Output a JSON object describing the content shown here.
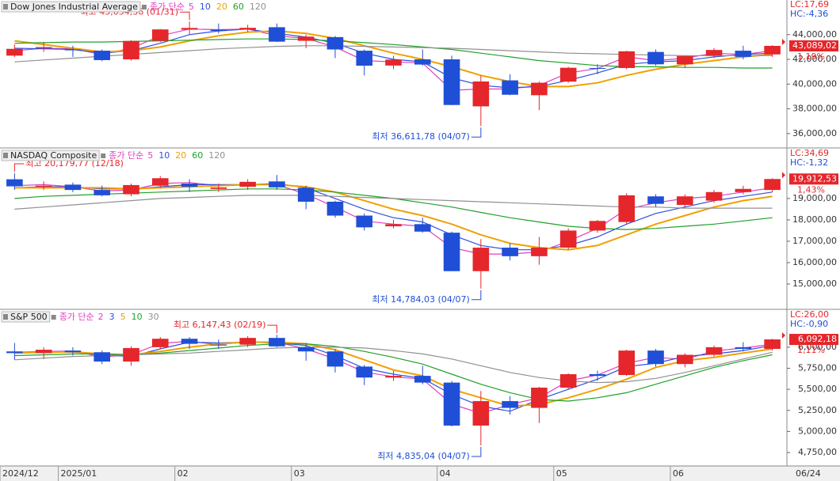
{
  "chart_data": [
    {
      "type": "candlestick",
      "title": "Dow Jones Industrial Average",
      "legend_prefix": "종가 단순",
      "open": [
        42300,
        42900,
        42800,
        42700,
        42000,
        43500,
        44400,
        44400,
        44400,
        44600,
        43500,
        43800,
        42700,
        41500,
        42000,
        42000,
        38200,
        40300,
        39100,
        40200,
        41300,
        41300,
        42600,
        41600,
        42300,
        42700,
        42400
      ],
      "high": [
        43200,
        43400,
        43100,
        42800,
        43550,
        44450,
        45054.36,
        44900,
        44800,
        44900,
        44000,
        43900,
        42800,
        42300,
        42800,
        42300,
        40700,
        40800,
        40200,
        41400,
        41600,
        42700,
        42800,
        42300,
        42900,
        43100,
        43150
      ],
      "low": [
        42200,
        42600,
        42200,
        41850,
        41900,
        43400,
        44000,
        44100,
        44200,
        43400,
        42900,
        42100,
        40700,
        41200,
        41500,
        38300,
        36611.78,
        39100,
        37900,
        40100,
        40800,
        41200,
        41500,
        41300,
        42100,
        42000,
        42200
      ],
      "close": [
        42850,
        42990,
        42730,
        41940,
        43490,
        44420,
        44540,
        44300,
        44550,
        43430,
        43840,
        42800,
        41490,
        41980,
        41580,
        38310,
        40210,
        39140,
        40110,
        41320,
        41250,
        42650,
        41600,
        42270,
        42760,
        42200,
        43089.02
      ],
      "series": [
        {
          "name": "5",
          "color": "#e040c0",
          "values": [
            42700,
            42900,
            42850,
            42400,
            42900,
            43900,
            44450,
            44400,
            44450,
            43900,
            43700,
            43000,
            41900,
            41800,
            41700,
            39500,
            39600,
            39600,
            39900,
            40900,
            41250,
            42200,
            41900,
            42100,
            42500,
            42400,
            42700
          ]
        },
        {
          "name": "10",
          "color": "#2f4fe0",
          "values": [
            42900,
            42850,
            42800,
            42500,
            42700,
            43300,
            44000,
            44300,
            44450,
            44100,
            43800,
            43300,
            42500,
            42000,
            41800,
            40500,
            39900,
            39700,
            39800,
            40300,
            40900,
            41600,
            41800,
            41900,
            42200,
            42400,
            42500
          ]
        },
        {
          "name": "20",
          "color": "#f0a000",
          "values": [
            43500,
            43200,
            42900,
            42600,
            42700,
            43000,
            43500,
            43900,
            44200,
            44300,
            44100,
            43700,
            43100,
            42500,
            42000,
            41400,
            40700,
            40200,
            39800,
            39800,
            40100,
            40700,
            41200,
            41600,
            41900,
            42200,
            42400
          ]
        },
        {
          "name": "60",
          "color": "#22a02a",
          "values": [
            43300,
            43350,
            43400,
            43400,
            43450,
            43500,
            43550,
            43600,
            43650,
            43650,
            43600,
            43500,
            43350,
            43200,
            43000,
            42800,
            42500,
            42200,
            41900,
            41700,
            41500,
            41400,
            41400,
            41350,
            41350,
            41300,
            41300
          ]
        },
        {
          "name": "120",
          "color": "#909090",
          "values": [
            41800,
            41950,
            42100,
            42250,
            42400,
            42550,
            42700,
            42850,
            42950,
            43050,
            43100,
            43100,
            43050,
            43000,
            42950,
            42900,
            42800,
            42700,
            42600,
            42500,
            42450,
            42400,
            42350,
            42300,
            42300,
            42300,
            42300
          ]
        }
      ],
      "ylim": [
        34900,
        46800
      ],
      "yticks": [
        {
          "value": 36000,
          "label": "36,000,00"
        },
        {
          "value": 38000,
          "label": "38,000,00"
        },
        {
          "value": 40000,
          "label": "40,000,00"
        },
        {
          "value": 42000,
          "label": "42,000,00"
        },
        {
          "value": 44000,
          "label": "44,000,00"
        }
      ],
      "annotations": {
        "high": "최고 45,054,36 (01/31)",
        "low": "최저 36,611,78 (04/07)"
      },
      "lc": "LC:17,69",
      "hc": "HC:-4,36",
      "last_label": "43,089,02",
      "change": "1,19%",
      "up_color": "#e5262b",
      "down_color": "#1f4fd6"
    },
    {
      "type": "candlestick",
      "title": "NASDAQ Composite",
      "legend_prefix": "종가 단순",
      "open": [
        19900,
        19550,
        19650,
        19400,
        19200,
        19600,
        19700,
        19450,
        19550,
        19800,
        19500,
        18850,
        18200,
        17700,
        17800,
        17400,
        15600,
        16700,
        16300,
        16700,
        17500,
        17900,
        19100,
        18700,
        18900,
        19300,
        19400
      ],
      "high": [
        20179.77,
        19800,
        19750,
        19600,
        19700,
        20050,
        19900,
        19700,
        19900,
        20100,
        19600,
        18900,
        18300,
        18000,
        18100,
        17450,
        17100,
        16900,
        17200,
        17600,
        18000,
        19250,
        19200,
        19200,
        19400,
        19600,
        19950
      ],
      "low": [
        19400,
        19400,
        19300,
        19100,
        19100,
        19500,
        19300,
        19300,
        19400,
        19400,
        18500,
        18100,
        17500,
        17600,
        17400,
        15600,
        14784.03,
        16100,
        15900,
        16600,
        17400,
        17800,
        18600,
        18600,
        18800,
        19200,
        19300
      ],
      "close": [
        19570,
        19600,
        19400,
        19150,
        19630,
        19950,
        19550,
        19520,
        19780,
        19520,
        18850,
        18200,
        17650,
        17800,
        17450,
        15600,
        16700,
        16300,
        16700,
        17500,
        17950,
        19150,
        18750,
        19100,
        19300,
        19450,
        19912.53
      ],
      "series": [
        {
          "name": "5",
          "color": "#e040c0",
          "values": [
            19600,
            19650,
            19550,
            19350,
            19400,
            19700,
            19750,
            19600,
            19650,
            19650,
            19200,
            18600,
            17950,
            17800,
            17700,
            16700,
            16400,
            16400,
            16500,
            17000,
            17600,
            18500,
            18800,
            19000,
            19100,
            19300,
            19500
          ]
        },
        {
          "name": "10",
          "color": "#2f4fe0",
          "values": [
            19500,
            19550,
            19550,
            19450,
            19450,
            19550,
            19650,
            19650,
            19650,
            19700,
            19500,
            19000,
            18500,
            18100,
            17900,
            17300,
            16800,
            16600,
            16600,
            16800,
            17200,
            17800,
            18300,
            18600,
            18900,
            19100,
            19300
          ]
        },
        {
          "name": "20",
          "color": "#f0a000",
          "values": [
            19500,
            19500,
            19500,
            19500,
            19450,
            19500,
            19550,
            19600,
            19650,
            19650,
            19550,
            19300,
            18900,
            18500,
            18200,
            17800,
            17300,
            16900,
            16700,
            16600,
            16800,
            17300,
            17800,
            18200,
            18600,
            18900,
            19100
          ]
        },
        {
          "name": "60",
          "color": "#22a02a",
          "values": [
            19000,
            19100,
            19150,
            19200,
            19250,
            19300,
            19350,
            19400,
            19450,
            19450,
            19400,
            19300,
            19150,
            19000,
            18800,
            18600,
            18350,
            18100,
            17900,
            17700,
            17600,
            17550,
            17600,
            17700,
            17800,
            17950,
            18100
          ]
        },
        {
          "name": "120",
          "color": "#909090",
          "values": [
            18500,
            18600,
            18700,
            18800,
            18900,
            19000,
            19050,
            19100,
            19150,
            19150,
            19150,
            19100,
            19050,
            19000,
            18950,
            18900,
            18850,
            18800,
            18750,
            18700,
            18650,
            18600,
            18600,
            18550,
            18550,
            18550,
            18550
          ]
        }
      ],
      "ylim": [
        13850,
        21330
      ],
      "yticks": [
        {
          "value": 15000,
          "label": "15,000,00"
        },
        {
          "value": 16000,
          "label": "16,000,00"
        },
        {
          "value": 17000,
          "label": "17,000,00"
        },
        {
          "value": 18000,
          "label": "18,000,00"
        },
        {
          "value": 19000,
          "label": "19,000,00"
        }
      ],
      "annotations": {
        "high": "최고 20,179,77 (12/18)",
        "low": "최저 14,784,03 (04/07)"
      },
      "lc": "LC:34,69",
      "hc": "HC:-1,32",
      "last_label": "19,912,53",
      "change": "1,43%",
      "up_color": "#e5262b",
      "down_color": "#1f4fd6"
    },
    {
      "type": "candlestick",
      "title": "S&P 500",
      "legend_prefix": "종가 단순",
      "open": [
        5950,
        5930,
        5960,
        5940,
        5830,
        6000,
        6100,
        6030,
        6030,
        6110,
        6000,
        5950,
        5770,
        5640,
        5660,
        5580,
        5070,
        5360,
        5280,
        5520,
        5680,
        5670,
        5960,
        5800,
        5910,
        6000,
        5980
      ],
      "high": [
        6050,
        6000,
        6000,
        5960,
        6010,
        6120,
        6120,
        6090,
        6130,
        6147.43,
        6050,
        5980,
        5790,
        5720,
        5780,
        5600,
        5480,
        5420,
        5530,
        5690,
        5720,
        5970,
        5980,
        5930,
        6020,
        6060,
        6100
      ],
      "low": [
        5850,
        5860,
        5900,
        5800,
        5780,
        5980,
        5980,
        5980,
        6000,
        6000,
        5840,
        5700,
        5550,
        5600,
        5560,
        5060,
        4835.04,
        5200,
        5100,
        5500,
        5600,
        5660,
        5770,
        5760,
        5890,
        5950,
        5960
      ],
      "close": [
        5930,
        5970,
        5940,
        5830,
        5990,
        6100,
        6040,
        6020,
        6110,
        6010,
        5950,
        5770,
        5640,
        5660,
        5580,
        5070,
        5360,
        5280,
        5520,
        5680,
        5660,
        5960,
        5800,
        5910,
        6000,
        5980,
        6092.18
      ],
      "series": [
        {
          "name": "2",
          "color": "#e040c0",
          "values": [
            5940,
            5950,
            5955,
            5885,
            5910,
            6045,
            6070,
            6030,
            6065,
            6060,
            5980,
            5860,
            5705,
            5650,
            5620,
            5325,
            5215,
            5320,
            5400,
            5600,
            5670,
            5810,
            5880,
            5855,
            5955,
            5990,
            6035
          ]
        },
        {
          "name": "3",
          "color": "#2f4fe0",
          "values": [
            5935,
            5945,
            5950,
            5910,
            5890,
            5980,
            6060,
            6050,
            6060,
            6050,
            6020,
            5900,
            5750,
            5680,
            5630,
            5440,
            5300,
            5240,
            5380,
            5500,
            5620,
            5770,
            5810,
            5890,
            5920,
            5960,
            6020
          ]
        },
        {
          "name": "5",
          "color": "#f0a000",
          "values": [
            5930,
            5940,
            5945,
            5920,
            5910,
            5950,
            6000,
            6040,
            6060,
            6060,
            6040,
            5970,
            5850,
            5730,
            5660,
            5500,
            5400,
            5300,
            5320,
            5400,
            5500,
            5620,
            5760,
            5840,
            5880,
            5930,
            5980
          ]
        },
        {
          "name": "10",
          "color": "#22a02a",
          "values": [
            5900,
            5910,
            5920,
            5920,
            5910,
            5930,
            5960,
            5990,
            6020,
            6040,
            6040,
            6010,
            5950,
            5880,
            5800,
            5680,
            5560,
            5460,
            5380,
            5360,
            5400,
            5460,
            5560,
            5660,
            5760,
            5840,
            5910
          ]
        },
        {
          "name": "30",
          "color": "#909090",
          "values": [
            5850,
            5870,
            5890,
            5900,
            5910,
            5920,
            5930,
            5950,
            5970,
            5990,
            6000,
            6000,
            5990,
            5960,
            5920,
            5860,
            5780,
            5700,
            5640,
            5600,
            5580,
            5590,
            5630,
            5700,
            5780,
            5860,
            5940
          ]
        }
      ],
      "ylim": [
        4600,
        6440
      ],
      "yticks": [
        {
          "value": 4750,
          "label": "4,750,00"
        },
        {
          "value": 5000,
          "label": "5,000,00"
        },
        {
          "value": 5250,
          "label": "5,250,00"
        },
        {
          "value": 5500,
          "label": "5,500,00"
        },
        {
          "value": 5750,
          "label": "5,750,00"
        },
        {
          "value": 6000,
          "label": "6,000,00"
        }
      ],
      "annotations": {
        "high": "최고 6,147,43 (02/19)",
        "low": "최저 4,835,04 (04/07)"
      },
      "lc": "LC:26,00",
      "hc": "HC:-0,90",
      "last_label": "6,092,18",
      "change": "1,11%",
      "up_color": "#e5262b",
      "down_color": "#1f4fd6",
      "categories": [
        "2024/12",
        null,
        "2025/01",
        null,
        null,
        null,
        "02",
        null,
        null,
        null,
        "03",
        null,
        null,
        null,
        null,
        "04",
        null,
        null,
        null,
        "05",
        null,
        null,
        null,
        "06",
        null,
        null,
        null
      ],
      "last_date": "06/24"
    }
  ]
}
